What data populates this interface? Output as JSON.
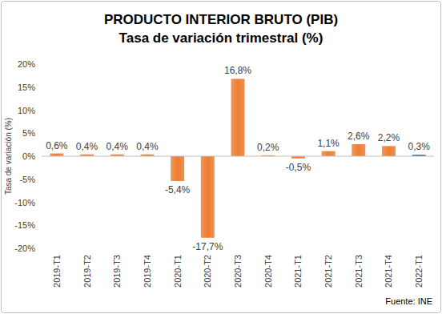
{
  "chart_data": {
    "type": "bar",
    "title": "PRODUCTO INTERIOR BRUTO (PIB)",
    "subtitle": "Tasa de variación trimestral (%)",
    "y_label": "Tasa de variación (%)",
    "annotations": [
      "Fuente: INE"
    ],
    "categories": [
      "2019-T1",
      "2019-T2",
      "2019-T3",
      "2019-T4",
      "2020-T1",
      "2020-T2",
      "2020-T3",
      "2020-T4",
      "2021-T1",
      "2021-T2",
      "2021-T3",
      "2021-T4",
      "2022-T1"
    ],
    "values": [
      0.6,
      0.4,
      0.4,
      0.4,
      -5.4,
      -17.7,
      16.8,
      0.2,
      -0.5,
      1.1,
      2.6,
      2.2,
      0.3
    ],
    "value_labels": [
      "0,6%",
      "0,4%",
      "0,4%",
      "0,4%",
      "-5,4%",
      "-17,7%",
      "16,8%",
      "0,2%",
      "-0,5%",
      "1,1%",
      "2,6%",
      "2,2%",
      "0,3%"
    ],
    "colors": [
      "#ed7d31",
      "#ed7d31",
      "#ed7d31",
      "#ed7d31",
      "#ed7d31",
      "#ed7d31",
      "#ed7d31",
      "#ed7d31",
      "#ed7d31",
      "#ed7d31",
      "#ed7d31",
      "#ed7d31",
      "#1f4e79"
    ],
    "ylim": [
      -20,
      20
    ],
    "yticks": [
      {
        "value": -20,
        "label": "-20%"
      },
      {
        "value": -15,
        "label": "-15%"
      },
      {
        "value": -10,
        "label": "-10%"
      },
      {
        "value": -5,
        "label": "-5%"
      },
      {
        "value": 0,
        "label": "0%"
      },
      {
        "value": 5,
        "label": "5%"
      },
      {
        "value": 10,
        "label": "10%"
      },
      {
        "value": 15,
        "label": "15%"
      },
      {
        "value": 20,
        "label": "20%"
      }
    ],
    "grid": false,
    "data_labels": true
  }
}
